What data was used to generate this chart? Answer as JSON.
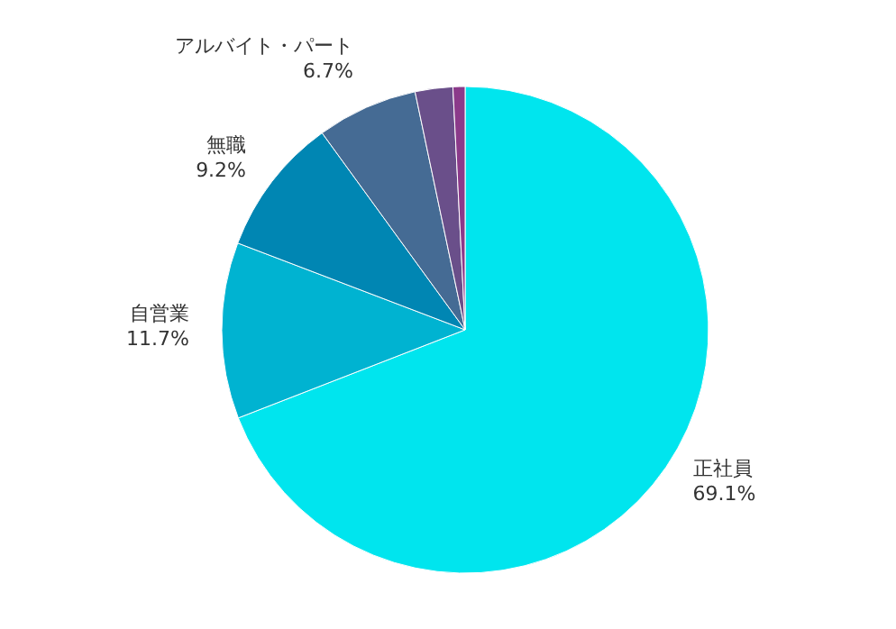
{
  "chart_data": {
    "type": "pie",
    "categories": [
      "正社員",
      "自営業",
      "無職",
      "アルバイト・パート",
      null,
      null
    ],
    "values": [
      69.1,
      11.7,
      9.2,
      6.7,
      2.5,
      0.8
    ],
    "value_labels": [
      "69.1%",
      "11.7%",
      "9.2%",
      "6.7%",
      null,
      null
    ],
    "colors": [
      "#00e5ee",
      "#00b3d1",
      "#0086b3",
      "#456b94",
      "#6a4f8a",
      "#8b3a8a"
    ],
    "legend": false
  }
}
